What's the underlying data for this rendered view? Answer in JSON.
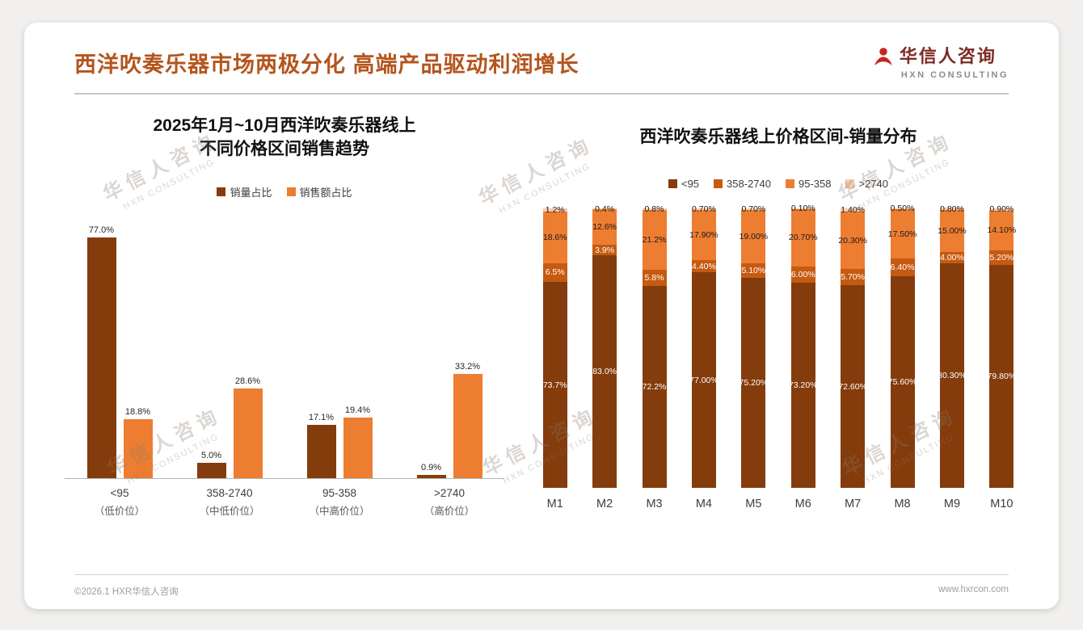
{
  "page": {
    "title": "西洋吹奏乐器市场两极分化 高端产品驱动利润增长",
    "watermark": {
      "line1": "华信人咨询",
      "line2": "HXN CONSULTING"
    },
    "footer": {
      "left": "©2026.1 HXR华信人咨询",
      "right": "www.hxrcon.com"
    }
  },
  "logo": {
    "name": "华信人咨询",
    "sub": "HXN CONSULTING"
  },
  "colors": {
    "accent": "#B4551D",
    "bar_dark": "#843C0C",
    "bar_mid": "#C55A11",
    "bar_orange": "#ED7D31",
    "bar_light": "#F8CBAD",
    "axis": "#b5b5b5"
  },
  "chart_data": [
    {
      "type": "bar",
      "title": "2025年1月~10月西洋吹奏乐器线上\n不同价格区间销售趋势",
      "legend_position": "top",
      "grid": false,
      "ylim": [
        0,
        85
      ],
      "xlabel": "",
      "ylabel": "",
      "categories": [
        {
          "l1": "<95",
          "l2": "（低价位）"
        },
        {
          "l1": "358-2740",
          "l2": "（中低价位）"
        },
        {
          "l1": "95-358",
          "l2": "（中高价位）"
        },
        {
          "l1": ">2740",
          "l2": "（高价位）"
        }
      ],
      "series": [
        {
          "name": "销量占比",
          "color": "#843C0C",
          "values": [
            77.0,
            5.0,
            17.1,
            0.9
          ],
          "labels": [
            "77.0%",
            "5.0%",
            "17.1%",
            "0.9%"
          ]
        },
        {
          "name": "销售额占比",
          "color": "#ED7D31",
          "values": [
            18.8,
            28.6,
            19.4,
            33.2
          ],
          "labels": [
            "18.8%",
            "28.6%",
            "19.4%",
            "33.2%"
          ]
        }
      ]
    },
    {
      "type": "stacked-bar",
      "title": "西洋吹奏乐器线上价格区间-销量分布",
      "legend_position": "top",
      "grid": false,
      "ylim": [
        0,
        100
      ],
      "xlabel": "",
      "ylabel": "",
      "categories": [
        "M1",
        "M2",
        "M3",
        "M4",
        "M5",
        "M6",
        "M7",
        "M8",
        "M9",
        "M10"
      ],
      "series": [
        {
          "name": "<95",
          "color": "#843C0C",
          "label_color": "#ffffff",
          "values": [
            73.7,
            83.0,
            72.2,
            77.0,
            75.2,
            73.2,
            72.6,
            75.6,
            80.3,
            79.8
          ],
          "labels": [
            "73.7%",
            "83.0%",
            "72.2%",
            "77.00%",
            "75.20%",
            "73.20%",
            "72.60%",
            "75.60%",
            "80.30%",
            "79.80%"
          ]
        },
        {
          "name": "358-2740",
          "color": "#C55A11",
          "label_color": "#ffffff",
          "values": [
            6.5,
            3.9,
            5.8,
            4.4,
            5.1,
            6.0,
            5.7,
            6.4,
            4.0,
            5.2
          ],
          "labels": [
            "6.5%",
            "3.9%",
            "5.8%",
            "4.40%",
            "5.10%",
            "6.00%",
            "5.70%",
            "6.40%",
            "4.00%",
            "5.20%"
          ]
        },
        {
          "name": "95-358",
          "color": "#ED7D31",
          "label_color": "#1a1a1a",
          "values": [
            18.6,
            12.6,
            21.2,
            17.9,
            19.0,
            20.7,
            20.3,
            17.5,
            15.0,
            14.1
          ],
          "labels": [
            "18.6%",
            "12.6%",
            "21.2%",
            "17.90%",
            "19.00%",
            "20.70%",
            "20.30%",
            "17.50%",
            "15.00%",
            "14.10%"
          ]
        },
        {
          "name": ">2740",
          "color": "#F8CBAD",
          "label_color": "#1a1a1a",
          "values": [
            1.2,
            0.4,
            0.8,
            0.7,
            0.7,
            0.1,
            1.4,
            0.5,
            0.8,
            0.9
          ],
          "labels": [
            "1.2%",
            "0.4%",
            "0.8%",
            "0.70%",
            "0.70%",
            "0.10%",
            "1.40%",
            "0.50%",
            "0.80%",
            "0.90%"
          ]
        }
      ]
    }
  ]
}
